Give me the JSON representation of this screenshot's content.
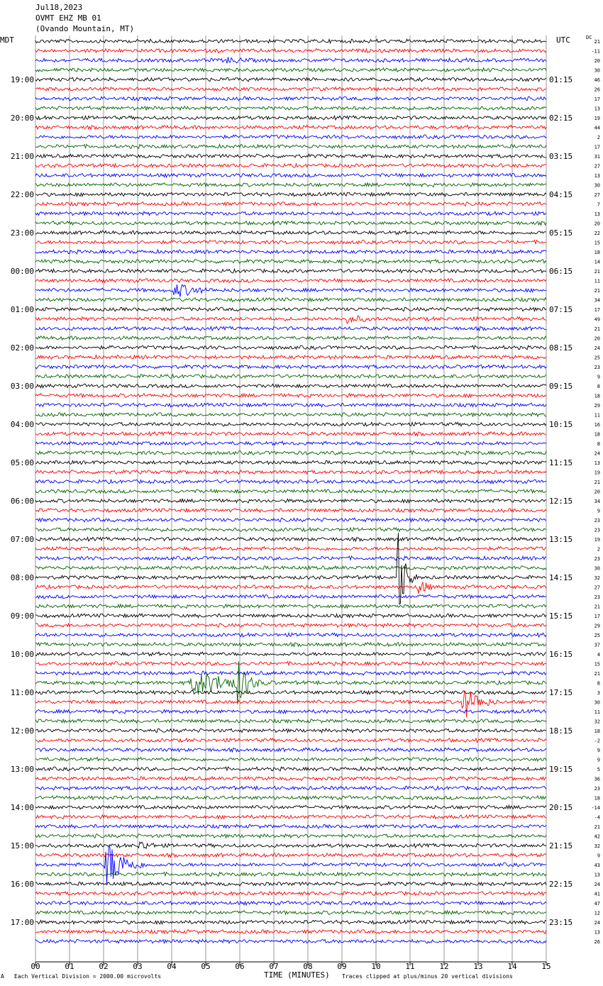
{
  "header": {
    "date": "Jul18,2023",
    "station": "OVMT EHZ MB 01",
    "location": "(Ovando Mountain, MT)"
  },
  "left_timezone": "MDT",
  "right_timezone": "UTC",
  "dc_label": "DC",
  "footer": {
    "scale_note": "Each Vertical Division = 2000.00 microvolts",
    "clip_note": "Traces clipped at plus/minus 20 vertical divisions",
    "corner_mark": "A"
  },
  "chart_data": {
    "type": "line",
    "xlabel": "TIME (MINUTES)",
    "xlim": [
      0,
      15
    ],
    "x_ticks": [
      "00",
      "01",
      "02",
      "03",
      "04",
      "05",
      "06",
      "07",
      "08",
      "09",
      "10",
      "11",
      "12",
      "13",
      "14",
      "15"
    ],
    "trace_colors": [
      "#000000",
      "#ff0000",
      "#0000ff",
      "#006400"
    ],
    "rows_per_hour": 4,
    "left_hour_labels": [
      "19:00",
      "20:00",
      "21:00",
      "22:00",
      "23:00",
      "00:00",
      "01:00",
      "02:00",
      "03:00",
      "04:00",
      "05:00",
      "06:00",
      "07:00",
      "08:00",
      "09:00",
      "10:00",
      "11:00",
      "12:00",
      "13:00",
      "14:00",
      "15:00",
      "16:00",
      "17:00"
    ],
    "right_hour_labels": [
      "01:15",
      "02:15",
      "03:15",
      "04:15",
      "05:15",
      "06:15",
      "07:15",
      "08:15",
      "09:15",
      "10:15",
      "11:15",
      "12:15",
      "13:15",
      "14:15",
      "15:15",
      "16:15",
      "17:15",
      "18:15",
      "19:15",
      "20:15",
      "21:15",
      "22:15",
      "23:15"
    ],
    "dc_offsets": [
      "21",
      "-11",
      "20",
      "30",
      "46",
      "26",
      "17",
      "13",
      "19",
      "44",
      "2",
      "17",
      "31",
      "27",
      "13",
      "30",
      "27",
      "7",
      "13",
      "20",
      "22",
      "15",
      "18",
      "14",
      "21",
      "11",
      "21",
      "34",
      "17",
      "49",
      "21",
      "20",
      "24",
      "25",
      "23",
      "9",
      "8",
      "18",
      "29",
      "11",
      "16",
      "18",
      "8",
      "24",
      "13",
      "19",
      "21",
      "20",
      "34",
      "9",
      "23",
      "23",
      "19",
      "2",
      "23",
      "30",
      "32",
      "27",
      "23",
      "21",
      "17",
      "29",
      "25",
      "37",
      "4",
      "15",
      "21",
      "8",
      "3",
      "30",
      "11",
      "32",
      "18",
      "-2",
      "9",
      "9",
      "5",
      "36",
      "23",
      "18",
      "-14",
      "-4",
      "21",
      "42",
      "32",
      "9",
      "43",
      "13",
      "24",
      "41",
      "47",
      "12",
      "24",
      "13",
      "26"
    ],
    "events": [
      {
        "row": 1,
        "start_min": 5.3,
        "end_min": 6.4,
        "amp": 4
      },
      {
        "row": 2,
        "start_min": 5.5,
        "end_min": 8.5,
        "amp": 6
      },
      {
        "row": 2,
        "start_min": 9.8,
        "end_min": 11.0,
        "amp": 5
      },
      {
        "row": 26,
        "start_min": 4.0,
        "end_min": 6.2,
        "amp": 14
      },
      {
        "row": 29,
        "start_min": 9.0,
        "end_min": 11.5,
        "amp": 8
      },
      {
        "row": 56,
        "start_min": 10.6,
        "end_min": 11.2,
        "amp": 90
      },
      {
        "row": 57,
        "start_min": 11.2,
        "end_min": 12.0,
        "amp": 18
      },
      {
        "row": 67,
        "start_min": 4.5,
        "end_min": 8.3,
        "amp": 22
      },
      {
        "row": 67,
        "start_min": 5.9,
        "end_min": 6.8,
        "amp": 45
      },
      {
        "row": 69,
        "start_min": 12.5,
        "end_min": 13.9,
        "amp": 30
      },
      {
        "row": 86,
        "start_min": 2.0,
        "end_min": 3.5,
        "amp": 45
      },
      {
        "row": 84,
        "start_min": 3.0,
        "end_min": 4.3,
        "amp": 10
      }
    ]
  }
}
